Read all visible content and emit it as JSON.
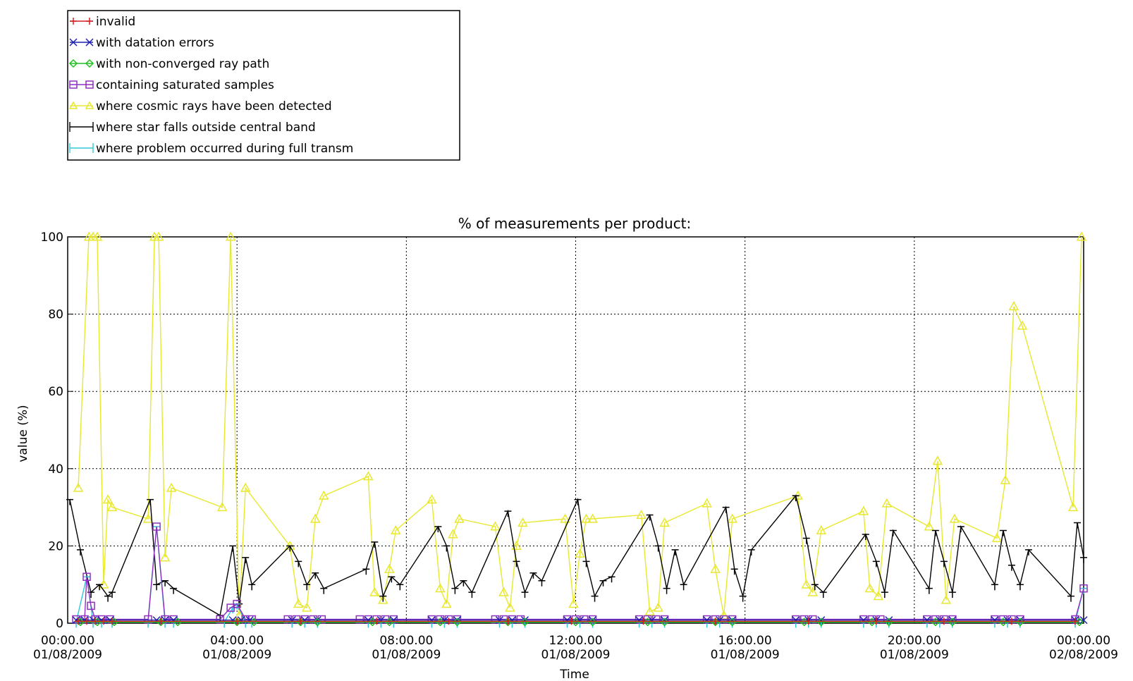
{
  "chart_data": {
    "type": "line",
    "title": "% of measurements per product:",
    "xlabel": "Time",
    "ylabel": "value (%)",
    "ylim": [
      0,
      100
    ],
    "xlim_hours": [
      0,
      24
    ],
    "grid": true,
    "legend_position": "top-left (outside, above plot)",
    "x_ticks": [
      {
        "line1": "00:00.00",
        "line2": "01/08/2009"
      },
      {
        "line1": "04:00.00",
        "line2": "01/08/2009"
      },
      {
        "line1": "08:00.00",
        "line2": "01/08/2009"
      },
      {
        "line1": "12:00.00",
        "line2": "01/08/2009"
      },
      {
        "line1": "16:00.00",
        "line2": "01/08/2009"
      },
      {
        "line1": "20:00.00",
        "line2": "01/08/2009"
      },
      {
        "line1": "00:00.00",
        "line2": "02/08/2009"
      }
    ],
    "y_ticks": [
      "0",
      "20",
      "40",
      "60",
      "80",
      "100"
    ],
    "series": [
      {
        "name": "invalid",
        "color": "#d42020",
        "marker": "plus",
        "x": [
          0.25,
          0.45,
          0.65,
          0.85,
          1.05,
          2.2,
          4.0,
          5.5,
          7.3,
          9.0,
          10.4,
          11.9,
          13.6,
          15.3,
          17.5,
          19.1,
          20.7,
          22.3,
          23.8
        ],
        "y": [
          0.5,
          0.5,
          0.5,
          0.5,
          0.5,
          0.5,
          0.5,
          0.5,
          0.5,
          0.5,
          0.5,
          0.5,
          0.5,
          0.5,
          0.5,
          0.5,
          0.5,
          0.5,
          0.5
        ]
      },
      {
        "name": "with datation errors",
        "color": "#2020b0",
        "marker": "x",
        "x": [
          0.2,
          0.4,
          0.6,
          0.8,
          1.0,
          2.1,
          2.3,
          2.5,
          3.9,
          4.1,
          4.3,
          5.3,
          5.6,
          5.9,
          7.1,
          7.4,
          7.7,
          8.6,
          8.9,
          9.2,
          10.2,
          10.5,
          10.8,
          11.8,
          12.1,
          12.4,
          13.5,
          13.8,
          14.1,
          15.1,
          15.4,
          15.7,
          17.2,
          17.5,
          17.8,
          18.8,
          19.1,
          19.4,
          20.3,
          20.6,
          20.9,
          21.9,
          22.2,
          22.5,
          23.8,
          24.0
        ],
        "y": [
          0.8,
          0.8,
          0.8,
          0.8,
          0.8,
          0.8,
          0.8,
          0.8,
          0.8,
          0.8,
          0.8,
          0.8,
          0.8,
          0.8,
          0.8,
          0.8,
          0.8,
          0.8,
          0.8,
          0.8,
          0.8,
          0.8,
          0.8,
          0.8,
          0.8,
          0.8,
          0.8,
          0.8,
          0.8,
          0.8,
          0.8,
          0.8,
          0.8,
          0.8,
          0.8,
          0.8,
          0.8,
          0.8,
          0.8,
          0.8,
          0.8,
          0.8,
          0.8,
          0.8,
          0.8,
          0.8
        ]
      },
      {
        "name": "with non-converged ray path",
        "color": "#20c020",
        "marker": "diamond",
        "x": [
          0.3,
          0.7,
          1.1,
          2.2,
          2.6,
          4.0,
          4.4,
          5.5,
          5.9,
          7.2,
          7.6,
          8.8,
          9.2,
          10.4,
          10.8,
          12.0,
          12.4,
          13.7,
          14.1,
          15.3,
          15.7,
          17.4,
          17.8,
          19.0,
          19.4,
          20.5,
          20.9,
          22.1,
          22.5,
          23.9
        ],
        "y": [
          0.3,
          0.3,
          0.3,
          0.3,
          0.3,
          0.3,
          0.3,
          0.3,
          0.3,
          0.3,
          0.3,
          0.3,
          0.3,
          0.3,
          0.3,
          0.3,
          0.3,
          0.3,
          0.3,
          0.3,
          0.3,
          0.3,
          0.3,
          0.3,
          0.3,
          0.3,
          0.3,
          0.3,
          0.3,
          0.3
        ]
      },
      {
        "name": "containing saturated samples",
        "color": "#9030c0",
        "marker": "square",
        "x": [
          0.2,
          0.4,
          0.45,
          0.55,
          0.65,
          0.8,
          1.0,
          1.9,
          2.1,
          2.3,
          2.5,
          3.6,
          3.85,
          4.0,
          4.2,
          4.35,
          5.2,
          5.4,
          5.6,
          5.8,
          6.0,
          6.9,
          7.1,
          7.3,
          7.5,
          7.7,
          8.6,
          8.8,
          9.0,
          9.2,
          10.1,
          10.3,
          10.5,
          10.7,
          11.8,
          12.0,
          12.2,
          12.4,
          13.5,
          13.7,
          13.9,
          14.1,
          15.1,
          15.3,
          15.5,
          15.7,
          17.2,
          17.4,
          17.6,
          18.8,
          19.0,
          19.2,
          20.3,
          20.5,
          20.7,
          20.9,
          21.9,
          22.1,
          22.3,
          22.5,
          23.8,
          24.0
        ],
        "y": [
          1,
          1,
          12,
          4.5,
          1,
          1,
          1,
          1,
          25,
          1,
          1,
          1,
          4,
          5,
          1,
          1,
          1,
          1,
          1,
          1,
          1,
          1,
          1,
          1,
          1,
          1,
          1,
          1,
          1,
          1,
          1,
          1,
          1,
          1,
          1,
          1,
          1,
          1,
          1,
          1,
          1,
          1,
          1,
          1,
          1,
          1,
          1,
          1,
          1,
          1,
          1,
          1,
          1,
          1,
          1,
          1,
          1,
          1,
          1,
          1,
          1,
          9
        ]
      },
      {
        "name": "where cosmic rays have been detected",
        "color": "#e8e830",
        "marker": "triangle",
        "x": [
          0.25,
          0.5,
          0.6,
          0.7,
          0.85,
          0.95,
          1.05,
          1.9,
          2.05,
          2.15,
          2.3,
          2.45,
          3.65,
          3.85,
          4.05,
          4.2,
          5.25,
          5.45,
          5.65,
          5.85,
          6.05,
          7.1,
          7.25,
          7.45,
          7.6,
          7.75,
          8.6,
          8.8,
          8.95,
          9.1,
          9.25,
          10.1,
          10.3,
          10.45,
          10.6,
          10.75,
          11.75,
          11.95,
          12.1,
          12.25,
          12.4,
          13.55,
          13.75,
          13.95,
          14.1,
          15.1,
          15.3,
          15.5,
          15.7,
          17.25,
          17.45,
          17.6,
          17.8,
          18.8,
          18.95,
          19.15,
          19.35,
          20.35,
          20.55,
          20.75,
          20.95,
          21.95,
          22.15,
          22.35,
          22.55,
          23.75,
          23.95
        ],
        "y": [
          35,
          100,
          100,
          100,
          10,
          32,
          30,
          27,
          100,
          100,
          17,
          35,
          30,
          100,
          2,
          35,
          20,
          5,
          4,
          27,
          33,
          38,
          8,
          6,
          14,
          24,
          32,
          9,
          5,
          23,
          27,
          25,
          8,
          4,
          20,
          26,
          27,
          5,
          18,
          27,
          27,
          28,
          3,
          4,
          26,
          31,
          14,
          2,
          27,
          33,
          10,
          8,
          24,
          29,
          9,
          7,
          31,
          25,
          42,
          6,
          27,
          22,
          37,
          82,
          77,
          30,
          100
        ]
      },
      {
        "name": "where star falls outside central band",
        "color": "#000000",
        "marker": "bar",
        "x": [
          0.05,
          0.3,
          0.55,
          0.75,
          0.95,
          1.05,
          1.95,
          2.1,
          2.3,
          2.5,
          3.6,
          3.9,
          4.05,
          4.2,
          4.35,
          5.25,
          5.45,
          5.65,
          5.85,
          6.05,
          7.05,
          7.25,
          7.45,
          7.65,
          7.85,
          8.75,
          8.95,
          9.15,
          9.35,
          9.55,
          10.4,
          10.6,
          10.8,
          11.0,
          11.2,
          12.05,
          12.25,
          12.45,
          12.65,
          12.85,
          13.75,
          13.95,
          14.15,
          14.35,
          14.55,
          15.55,
          15.75,
          15.95,
          16.15,
          17.2,
          17.45,
          17.65,
          17.85,
          18.85,
          19.1,
          19.3,
          19.5,
          20.35,
          20.5,
          20.7,
          20.9,
          21.1,
          21.9,
          22.1,
          22.3,
          22.5,
          22.7,
          23.7,
          23.85,
          24.0
        ],
        "y": [
          32,
          19,
          8,
          10,
          7,
          8,
          32,
          10,
          11,
          9,
          2,
          20,
          5,
          17,
          10,
          20,
          16,
          10,
          13,
          9,
          14,
          21,
          7,
          12,
          10,
          25,
          20,
          9,
          11,
          8,
          29,
          16,
          8,
          13,
          11,
          32,
          16,
          7,
          11,
          12,
          28,
          20,
          9,
          19,
          10,
          30,
          14,
          7,
          19,
          33,
          22,
          10,
          8,
          23,
          16,
          8,
          24,
          9,
          24,
          16,
          8,
          25,
          10,
          24,
          15,
          10,
          19,
          7,
          26,
          17
        ]
      },
      {
        "name": "where problem occurred during full transm",
        "color": "#30c8d8",
        "marker": "bar",
        "x": [
          0.2,
          0.45,
          0.6,
          0.8,
          1.05,
          1.9,
          2.1,
          2.3,
          2.5,
          3.7,
          3.9,
          4.0,
          4.2,
          4.35,
          5.3,
          5.6,
          5.9,
          7.1,
          7.4,
          7.7,
          8.6,
          8.9,
          9.2,
          10.2,
          10.5,
          10.8,
          11.8,
          12.1,
          12.4,
          13.5,
          13.8,
          14.1,
          15.1,
          15.4,
          15.7,
          17.2,
          17.5,
          17.8,
          18.8,
          19.1,
          19.4,
          20.3,
          20.6,
          20.9,
          21.9,
          22.2,
          22.5,
          23.8,
          24.0
        ],
        "y": [
          0.3,
          12,
          0.3,
          0.3,
          0.3,
          0.3,
          25,
          0.3,
          0.3,
          0.3,
          4,
          5,
          0.3,
          0.3,
          0.3,
          0.3,
          0.3,
          0.3,
          0.3,
          0.3,
          0.3,
          0.3,
          0.3,
          0.3,
          0.3,
          0.3,
          0.3,
          0.3,
          0.3,
          0.3,
          0.3,
          0.3,
          0.3,
          0.3,
          0.3,
          0.3,
          0.3,
          0.3,
          0.3,
          0.3,
          0.3,
          0.3,
          0.3,
          0.3,
          0.3,
          0.3,
          0.3,
          0.3,
          9
        ]
      }
    ]
  }
}
